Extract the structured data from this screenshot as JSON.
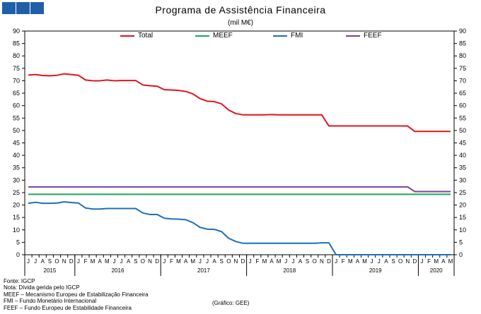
{
  "header": {
    "logo_icon": "institutional-logo-icon"
  },
  "chart_data": {
    "type": "line",
    "title": "Programa de Assistência Financeira",
    "subtitle": "(mil M€)",
    "ylim": [
      0,
      90
    ],
    "yticks": [
      0,
      5,
      10,
      15,
      20,
      25,
      30,
      35,
      40,
      45,
      50,
      55,
      60,
      65,
      70,
      75,
      80,
      85,
      90
    ],
    "grid": false,
    "legend_position": "top",
    "secondary_axis": true,
    "x_month_labels": [
      "J",
      "J",
      "A",
      "S",
      "O",
      "N",
      "D",
      "J",
      "F",
      "M",
      "A",
      "M",
      "J",
      "J",
      "A",
      "S",
      "O",
      "N",
      "D",
      "J",
      "F",
      "M",
      "A",
      "M",
      "J",
      "J",
      "A",
      "S",
      "O",
      "N",
      "D",
      "J",
      "F",
      "M",
      "A",
      "M",
      "J",
      "J",
      "A",
      "S",
      "O",
      "N",
      "D",
      "J",
      "F",
      "M",
      "A",
      "M",
      "J",
      "J",
      "A",
      "S",
      "O",
      "N",
      "D",
      "J",
      "F",
      "M",
      "A",
      "M"
    ],
    "years": [
      {
        "label": "2015",
        "months": 7
      },
      {
        "label": "2016",
        "months": 12
      },
      {
        "label": "2017",
        "months": 12
      },
      {
        "label": "2018",
        "months": 12
      },
      {
        "label": "2019",
        "months": 12
      },
      {
        "label": "2020",
        "months": 5
      }
    ],
    "series": [
      {
        "name": "Total",
        "color": "#e0141c",
        "values": [
          72.3,
          72.5,
          72.1,
          72.0,
          72.2,
          72.8,
          72.5,
          72.2,
          70.3,
          70.0,
          70.0,
          70.3,
          70.0,
          70.1,
          70.1,
          70.1,
          68.3,
          68.0,
          67.8,
          66.4,
          66.3,
          66.1,
          65.7,
          64.7,
          62.8,
          61.8,
          61.6,
          60.7,
          58.2,
          56.8,
          56.3,
          56.3,
          56.3,
          56.3,
          56.4,
          56.3,
          56.3,
          56.3,
          56.3,
          56.3,
          56.3,
          56.3,
          51.8,
          51.8,
          51.8,
          51.8,
          51.8,
          51.8,
          51.8,
          51.8,
          51.8,
          51.8,
          51.8,
          51.8,
          49.6,
          49.6,
          49.6,
          49.6,
          49.6,
          49.6
        ]
      },
      {
        "name": "MEEF",
        "color": "#1ea55a",
        "values": [
          24.3,
          24.3,
          24.3,
          24.3,
          24.3,
          24.3,
          24.3,
          24.3,
          24.3,
          24.3,
          24.3,
          24.3,
          24.3,
          24.3,
          24.3,
          24.3,
          24.3,
          24.3,
          24.3,
          24.3,
          24.3,
          24.3,
          24.3,
          24.3,
          24.3,
          24.3,
          24.3,
          24.3,
          24.3,
          24.3,
          24.3,
          24.3,
          24.3,
          24.3,
          24.3,
          24.3,
          24.3,
          24.3,
          24.3,
          24.3,
          24.3,
          24.3,
          24.3,
          24.3,
          24.3,
          24.3,
          24.3,
          24.3,
          24.3,
          24.3,
          24.3,
          24.3,
          24.3,
          24.3,
          24.3,
          24.3,
          24.3,
          24.3,
          24.3,
          24.3
        ]
      },
      {
        "name": "FMI",
        "color": "#1f6fb5",
        "values": [
          20.7,
          21.1,
          20.7,
          20.7,
          20.8,
          21.3,
          21.0,
          20.8,
          18.8,
          18.4,
          18.4,
          18.6,
          18.6,
          18.6,
          18.6,
          18.6,
          16.8,
          16.2,
          16.2,
          14.7,
          14.4,
          14.3,
          14.1,
          12.9,
          11.0,
          10.3,
          10.2,
          9.3,
          6.6,
          5.3,
          4.6,
          4.6,
          4.6,
          4.6,
          4.6,
          4.6,
          4.6,
          4.6,
          4.6,
          4.6,
          4.6,
          4.8,
          4.8,
          0,
          0,
          0,
          0,
          0,
          0,
          0,
          0,
          0,
          0,
          0,
          0,
          0,
          0,
          0,
          0,
          0
        ]
      },
      {
        "name": "FEEF",
        "color": "#7a3ea1",
        "values": [
          27.3,
          27.3,
          27.3,
          27.3,
          27.3,
          27.3,
          27.3,
          27.3,
          27.3,
          27.3,
          27.3,
          27.3,
          27.3,
          27.3,
          27.3,
          27.3,
          27.3,
          27.3,
          27.3,
          27.3,
          27.3,
          27.3,
          27.3,
          27.3,
          27.3,
          27.3,
          27.3,
          27.3,
          27.3,
          27.3,
          27.3,
          27.3,
          27.3,
          27.3,
          27.3,
          27.3,
          27.3,
          27.3,
          27.3,
          27.3,
          27.3,
          27.3,
          27.3,
          27.3,
          27.3,
          27.3,
          27.3,
          27.3,
          27.3,
          27.3,
          27.3,
          27.3,
          27.3,
          27.3,
          25.4,
          25.4,
          25.4,
          25.4,
          25.4,
          25.4
        ]
      }
    ]
  },
  "notes": [
    "Fonte: IGCP",
    "Nota: Dívida gerida pelo IGCP",
    "MEEF – Mecanismo Europeu de Estabilização Financeira",
    "FMI – Fundo Monetário Internacional",
    "FEEF – Fundo Europeu de Estabilidade Financeira"
  ],
  "credit": "(Gráfico: GEE)"
}
